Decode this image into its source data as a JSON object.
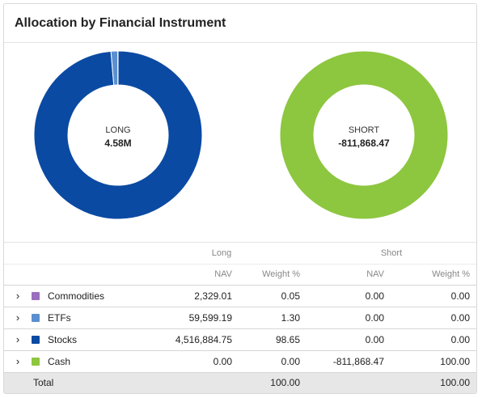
{
  "header": {
    "title": "Allocation by Financial Instrument"
  },
  "long_chart": {
    "label": "LONG",
    "value": "4.58M",
    "segments": [
      {
        "name": "Stocks",
        "weight": 98.65,
        "color": "#0b4aa2"
      },
      {
        "name": "ETFs",
        "weight": 1.3,
        "color": "#5b8fd1"
      },
      {
        "name": "Commodities",
        "weight": 0.05,
        "color": "#9b6fbe"
      }
    ]
  },
  "short_chart": {
    "label": "SHORT",
    "value": "-811,868.47",
    "segments": [
      {
        "name": "Cash",
        "weight": 100.0,
        "color": "#8dc63f"
      }
    ]
  },
  "table": {
    "group_headers": {
      "long": "Long",
      "short": "Short"
    },
    "sub_headers": {
      "nav": "NAV",
      "weight": "Weight %"
    },
    "rows": [
      {
        "name": "Commodities",
        "color": "#9b6fbe",
        "long_nav": "2,329.01",
        "long_weight": "0.05",
        "short_nav": "0.00",
        "short_weight": "0.00"
      },
      {
        "name": "ETFs",
        "color": "#5b8fd1",
        "long_nav": "59,599.19",
        "long_weight": "1.30",
        "short_nav": "0.00",
        "short_weight": "0.00"
      },
      {
        "name": "Stocks",
        "color": "#0b4aa2",
        "long_nav": "4,516,884.75",
        "long_weight": "98.65",
        "short_nav": "0.00",
        "short_weight": "0.00"
      },
      {
        "name": "Cash",
        "color": "#8dc63f",
        "long_nav": "0.00",
        "long_weight": "0.00",
        "short_nav": "-811,868.47",
        "short_weight": "100.00"
      }
    ],
    "total": {
      "label": "Total",
      "long_weight": "100.00",
      "short_weight": "100.00"
    }
  }
}
